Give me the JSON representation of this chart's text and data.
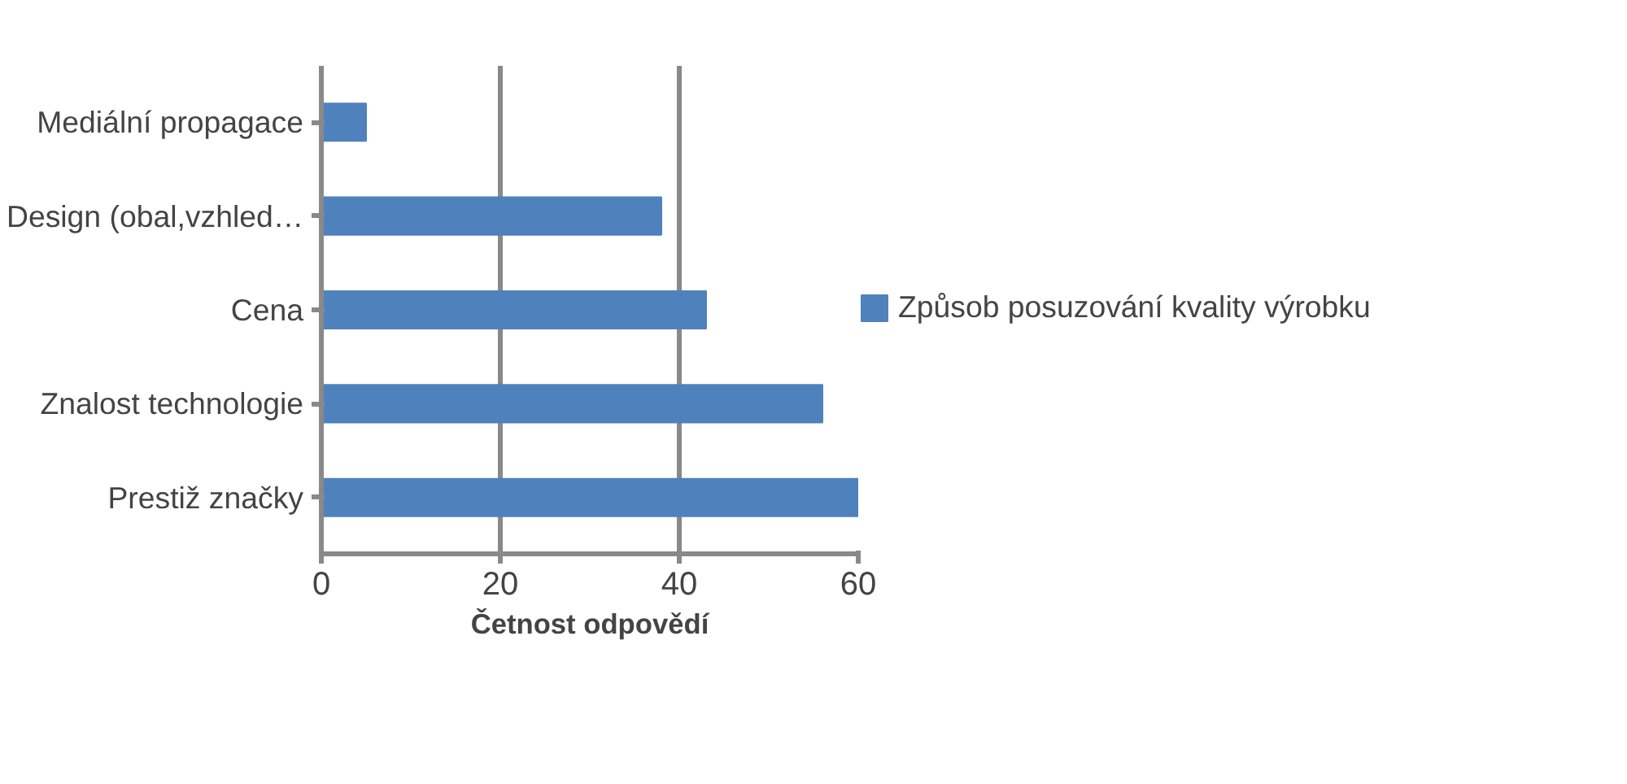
{
  "chart_data": {
    "type": "bar",
    "orientation": "horizontal",
    "xlabel": "Četnost odpovědí",
    "categories": [
      "Mediální propagace",
      "Design (obal,vzhled…",
      "Cena",
      "Znalost technologie",
      "Prestiž značky"
    ],
    "series": [
      {
        "name": "Způsob posuzování kvality výrobku",
        "color": "#4f81bd",
        "values": [
          5,
          38,
          43,
          56,
          60
        ]
      }
    ],
    "xlim": [
      0,
      60
    ],
    "xticks": [
      0,
      20,
      40,
      60
    ],
    "grid": "x",
    "legend": "right"
  }
}
